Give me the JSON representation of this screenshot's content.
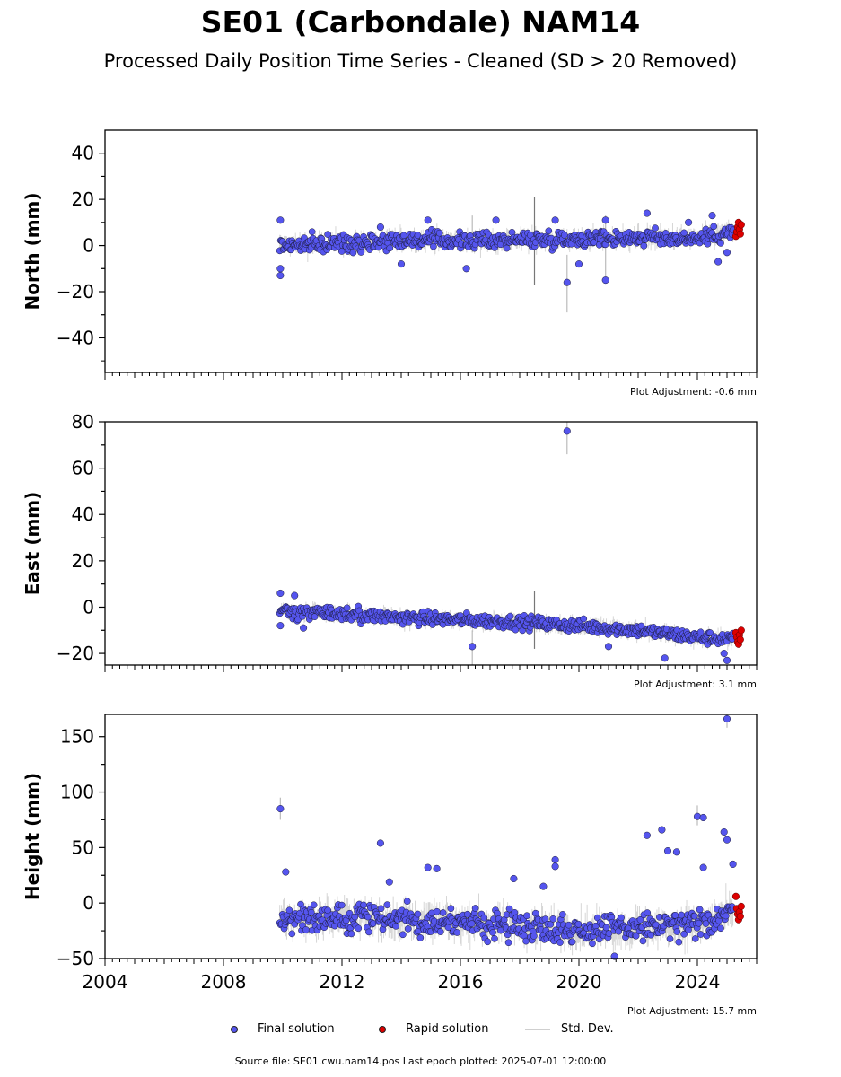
{
  "title": "SE01 (Carbondale) NAM14",
  "subtitle": "Processed Daily Position Time Series - Cleaned (SD > 20 Removed)",
  "source_text": "Source file: SE01.cwu.nam14.pos  Last epoch plotted: 2025-07-01 12:00:00",
  "legend": {
    "final": "Final solution",
    "rapid": "Rapid solution",
    "std": "Std. Dev."
  },
  "colors": {
    "final": "#5555ee",
    "rapid": "#dd0000",
    "std": "#bbbbbb",
    "marker_edge": "#1a1a33"
  },
  "chart_data": [
    {
      "type": "scatter",
      "ylabel": "North (mm)",
      "adjustment": "Plot Adjustment: -0.6 mm",
      "xlim": [
        2004,
        2026
      ],
      "ylim": [
        -55,
        50
      ],
      "yticks": [
        -40,
        -20,
        0,
        20,
        40
      ],
      "xticks": [
        2004,
        2008,
        2012,
        2016,
        2020,
        2024
      ],
      "series": {
        "final_trend": [
          [
            2009.9,
            0
          ],
          [
            2012,
            1
          ],
          [
            2014,
            2.5
          ],
          [
            2016,
            2
          ],
          [
            2018,
            2.5
          ],
          [
            2020,
            3
          ],
          [
            2022,
            3.5
          ],
          [
            2024,
            3
          ],
          [
            2025.2,
            6
          ]
        ],
        "final_scatter_mm": 2.5,
        "final_outliers": [
          [
            2009.92,
            11
          ],
          [
            2009.92,
            -13
          ],
          [
            2009.92,
            -10
          ],
          [
            2013.3,
            8
          ],
          [
            2014.0,
            -8
          ],
          [
            2014.9,
            11
          ],
          [
            2016.2,
            -10
          ],
          [
            2017.2,
            11
          ],
          [
            2019.2,
            11
          ],
          [
            2019.6,
            -16
          ],
          [
            2020.0,
            -8
          ],
          [
            2020.9,
            -15
          ],
          [
            2020.9,
            11
          ],
          [
            2022.3,
            14
          ],
          [
            2023.7,
            10
          ],
          [
            2024.5,
            13
          ],
          [
            2024.7,
            -7
          ],
          [
            2025.0,
            -3
          ]
        ],
        "rapid": [
          [
            2025.3,
            4
          ],
          [
            2025.33,
            6
          ],
          [
            2025.36,
            8
          ],
          [
            2025.39,
            10
          ],
          [
            2025.42,
            7
          ],
          [
            2025.45,
            5
          ],
          [
            2025.48,
            9
          ]
        ],
        "std_spikes": [
          [
            2016.4,
            -3,
            13
          ],
          [
            2018.5,
            -17,
            21
          ],
          [
            2019.6,
            -29,
            -4
          ],
          [
            2020.9,
            -13,
            13
          ]
        ]
      }
    },
    {
      "type": "scatter",
      "ylabel": "East (mm)",
      "adjustment": "Plot Adjustment: 3.1 mm",
      "xlim": [
        2004,
        2026
      ],
      "ylim": [
        -25,
        80
      ],
      "yticks": [
        -20,
        0,
        20,
        40,
        60,
        80
      ],
      "xticks": [
        2004,
        2008,
        2012,
        2016,
        2020,
        2024
      ],
      "series": {
        "final_trend": [
          [
            2009.9,
            -2
          ],
          [
            2012,
            -3
          ],
          [
            2014,
            -4.5
          ],
          [
            2016,
            -5.5
          ],
          [
            2018,
            -6.5
          ],
          [
            2020,
            -8
          ],
          [
            2022,
            -10
          ],
          [
            2024,
            -13
          ],
          [
            2025.2,
            -14
          ]
        ],
        "final_scatter_mm": 2,
        "final_outliers": [
          [
            2009.92,
            6
          ],
          [
            2009.92,
            -8
          ],
          [
            2010.4,
            5
          ],
          [
            2010.7,
            -9
          ],
          [
            2016.4,
            -17
          ],
          [
            2019.6,
            76
          ],
          [
            2021.0,
            -17
          ],
          [
            2022.9,
            -22
          ],
          [
            2024.9,
            -20
          ],
          [
            2025.0,
            -23
          ]
        ],
        "rapid": [
          [
            2025.3,
            -11
          ],
          [
            2025.33,
            -13
          ],
          [
            2025.36,
            -15
          ],
          [
            2025.39,
            -16
          ],
          [
            2025.42,
            -12
          ],
          [
            2025.45,
            -14
          ],
          [
            2025.48,
            -10
          ]
        ],
        "std_spikes": [
          [
            2016.4,
            -25,
            -10
          ],
          [
            2018.5,
            -18,
            7
          ],
          [
            2019.6,
            66,
            80
          ]
        ]
      }
    },
    {
      "type": "scatter",
      "ylabel": "Height (mm)",
      "adjustment": "Plot Adjustment: 15.7 mm",
      "xlim": [
        2004,
        2026
      ],
      "ylim": [
        -50,
        170
      ],
      "yticks": [
        -50,
        0,
        50,
        100,
        150
      ],
      "xticks": [
        2004,
        2008,
        2012,
        2016,
        2020,
        2024
      ],
      "series": {
        "final_trend": [
          [
            2009.9,
            -15
          ],
          [
            2012,
            -12
          ],
          [
            2014,
            -15
          ],
          [
            2016,
            -18
          ],
          [
            2018,
            -20
          ],
          [
            2020,
            -25
          ],
          [
            2022,
            -22
          ],
          [
            2024,
            -20
          ],
          [
            2025.2,
            -8
          ]
        ],
        "final_scatter_mm": 9,
        "final_outliers": [
          [
            2009.92,
            85
          ],
          [
            2010.1,
            28
          ],
          [
            2013.3,
            54
          ],
          [
            2013.6,
            19
          ],
          [
            2014.9,
            32
          ],
          [
            2015.2,
            31
          ],
          [
            2017.8,
            22
          ],
          [
            2018.8,
            15
          ],
          [
            2019.2,
            39
          ],
          [
            2019.2,
            33
          ],
          [
            2022.3,
            61
          ],
          [
            2022.8,
            66
          ],
          [
            2023.0,
            47
          ],
          [
            2023.3,
            46
          ],
          [
            2024.0,
            78
          ],
          [
            2024.2,
            77
          ],
          [
            2024.2,
            32
          ],
          [
            2024.9,
            64
          ],
          [
            2025.0,
            57
          ],
          [
            2025.0,
            166
          ],
          [
            2025.2,
            35
          ],
          [
            2021.2,
            -48
          ]
        ],
        "rapid": [
          [
            2025.3,
            6
          ],
          [
            2025.33,
            -5
          ],
          [
            2025.36,
            -10
          ],
          [
            2025.39,
            -15
          ],
          [
            2025.42,
            -8
          ],
          [
            2025.45,
            -12
          ],
          [
            2025.48,
            -3
          ]
        ],
        "std_spikes": [
          [
            2009.92,
            75,
            95
          ],
          [
            2024.0,
            70,
            88
          ],
          [
            2025.0,
            158,
            170
          ]
        ]
      }
    }
  ]
}
